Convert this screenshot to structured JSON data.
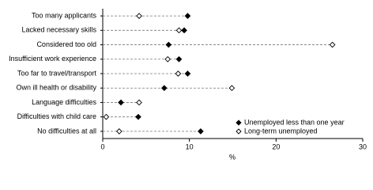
{
  "chart_data": {
    "type": "dot",
    "categories": [
      "Too many applicants",
      "Lacked necessary skills",
      "Considered too old",
      "Insufficient work experience",
      "Too far to travel/transport",
      "Own ill health or disability",
      "Language difficulties",
      "Difficulties with child care",
      "No difficulties at all"
    ],
    "series": [
      {
        "name": "Unemployed less than one year",
        "color": "#000000",
        "filled": true,
        "values": [
          9.8,
          9.4,
          7.6,
          8.8,
          9.8,
          7.1,
          2.1,
          4.1,
          11.3
        ]
      },
      {
        "name": "Long-term unemployed",
        "color": "#000000",
        "filled": false,
        "values": [
          4.2,
          8.8,
          26.5,
          7.5,
          8.7,
          14.9,
          4.2,
          0.4,
          1.9
        ]
      }
    ],
    "xlim": [
      0,
      30
    ],
    "xticks": [
      0,
      10,
      20,
      30
    ],
    "xlabel": "%",
    "legend": "lower right"
  }
}
